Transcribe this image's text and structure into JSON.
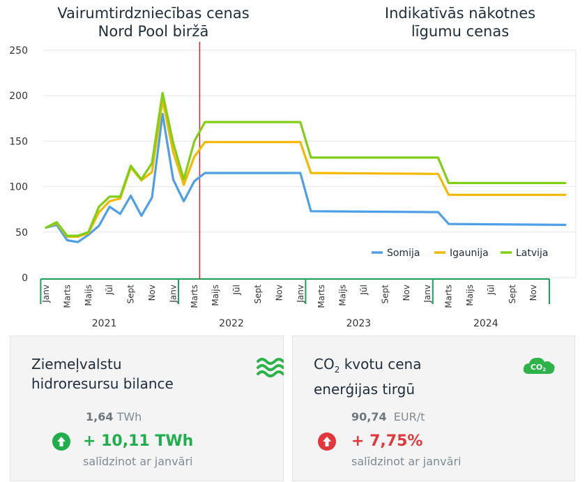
{
  "chart_data": {
    "type": "line",
    "title_left": [
      "Vairumtirdzniecības cenas",
      "Nord Pool biržā"
    ],
    "title_right": [
      "Indikatīvās nākotnes",
      "līgumu cenas"
    ],
    "ylim": [
      0,
      250
    ],
    "yticks": [
      0,
      50,
      100,
      150,
      200,
      250
    ],
    "x_tick_labels": [
      "Janv",
      "Marts",
      "Maijs",
      "Jūl",
      "Sept",
      "Nov",
      "Janv",
      "Marts",
      "Maijs",
      "Jūl",
      "Sept",
      "Nov",
      "Janv",
      "Marts",
      "Maijs",
      "Jūl",
      "Sept",
      "Nov",
      "Janv",
      "Marts",
      "Maijs",
      "Jūl",
      "Sept",
      "Nov"
    ],
    "years": [
      {
        "label": "2021",
        "start": 0,
        "end": 11
      },
      {
        "label": "2022",
        "start": 12,
        "end": 23
      },
      {
        "label": "2023",
        "start": 24,
        "end": 35
      },
      {
        "label": "2024",
        "start": 36,
        "end": 47
      }
    ],
    "year_boundaries": [
      -0.5,
      12.5,
      24.5,
      36.5,
      47.5
    ],
    "divider_x": 14.5,
    "series": [
      {
        "name": "Somija",
        "color": "#4f9fe6",
        "points": [
          [
            0,
            55
          ],
          [
            1,
            58
          ],
          [
            2,
            41
          ],
          [
            3,
            39
          ],
          [
            4,
            47
          ],
          [
            5,
            57
          ],
          [
            6,
            78
          ],
          [
            7,
            70
          ],
          [
            8,
            90
          ],
          [
            9,
            68
          ],
          [
            10,
            88
          ],
          [
            11,
            180
          ],
          [
            12,
            108
          ],
          [
            13,
            84
          ],
          [
            14,
            106
          ],
          [
            15,
            115
          ],
          [
            24,
            115
          ],
          [
            25,
            73
          ],
          [
            37,
            72
          ],
          [
            38,
            59
          ],
          [
            49,
            58
          ]
        ]
      },
      {
        "name": "Igaunija",
        "color": "#f5b800",
        "points": [
          [
            0,
            55
          ],
          [
            1,
            60
          ],
          [
            2,
            45
          ],
          [
            3,
            45
          ],
          [
            4,
            49
          ],
          [
            5,
            72
          ],
          [
            6,
            84
          ],
          [
            7,
            87
          ],
          [
            8,
            121
          ],
          [
            9,
            107
          ],
          [
            10,
            116
          ],
          [
            11,
            195
          ],
          [
            12,
            138
          ],
          [
            13,
            102
          ],
          [
            14,
            133
          ],
          [
            15,
            149
          ],
          [
            24,
            149
          ],
          [
            25,
            115
          ],
          [
            37,
            114
          ],
          [
            38,
            91
          ],
          [
            49,
            91
          ]
        ]
      },
      {
        "name": "Latvija",
        "color": "#7fcf15",
        "points": [
          [
            0,
            55
          ],
          [
            1,
            61
          ],
          [
            2,
            46
          ],
          [
            3,
            46
          ],
          [
            4,
            50
          ],
          [
            5,
            78
          ],
          [
            6,
            89
          ],
          [
            7,
            89
          ],
          [
            8,
            123
          ],
          [
            9,
            108
          ],
          [
            10,
            126
          ],
          [
            11,
            203
          ],
          [
            12,
            148
          ],
          [
            13,
            108
          ],
          [
            14,
            150
          ],
          [
            15,
            171
          ],
          [
            24,
            171
          ],
          [
            25,
            132
          ],
          [
            37,
            132
          ],
          [
            38,
            104
          ],
          [
            49,
            104
          ]
        ]
      }
    ]
  },
  "cards": [
    {
      "title_line1": "Ziemeļvalstu",
      "title_line2": "hidroresursu bilance",
      "icon": "waves-icon",
      "value_number": "1,64",
      "value_unit": " TWh",
      "direction": "up",
      "change": "+ 10,11 TWh",
      "change_color": "#1fae4b",
      "note": "salīdzinot ar janvāri"
    },
    {
      "title_prefix": "CO",
      "title_sub": "2",
      "title_rest": " kvotu cena",
      "title_line2": "enerģijas tirgū",
      "icon": "co2-cloud-icon",
      "icon_text": "CO",
      "icon_sub": "2",
      "value_number": "90,74",
      "value_unit": "  EUR/t",
      "direction": "up",
      "change": "+ 7,75%",
      "change_color": "#e0383d",
      "note": "salīdzinot ar janvāri"
    }
  ],
  "colors": {
    "axis_green": "#1aa25a",
    "grid": "#e6e6e6",
    "divider": "#d6262d",
    "icon_green": "#2db34a"
  }
}
